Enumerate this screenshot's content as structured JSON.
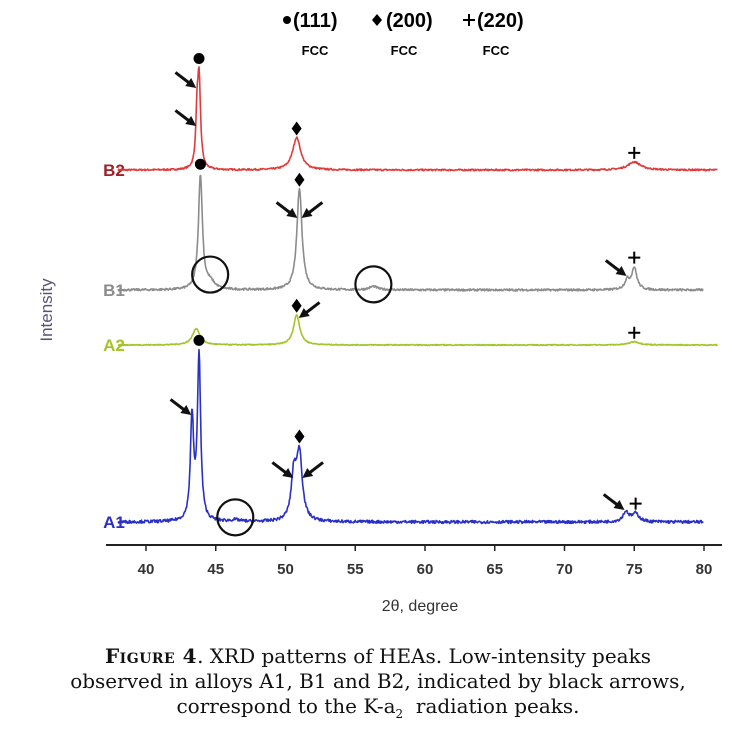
{
  "legend": [
    {
      "marker": "●",
      "label": "(111)",
      "sublabel": "FCC"
    },
    {
      "marker": "♦",
      "label": "(200)",
      "sublabel": "FCC"
    },
    {
      "marker": "+",
      "label": "(220)",
      "sublabel": "FCC"
    }
  ],
  "caption": {
    "fig_label": "Figure 4",
    "line1": ". XRD patterns of HEAs. Low-intensity peaks",
    "line2": "observed in alloys A1, B1 and B2, indicated by black arrows,",
    "line3_pre": "correspond to the K-a",
    "line3_sub": "2",
    "line3_post": "  radiation peaks."
  },
  "chart_data": {
    "type": "line",
    "xlabel": "2θ, degree",
    "ylabel": "Intensity",
    "xlim": [
      38,
      82
    ],
    "xticks": [
      40,
      45,
      50,
      55,
      60,
      65,
      70,
      75,
      80
    ],
    "grid": false,
    "series": [
      {
        "name": "B2",
        "color": "#e23a3a",
        "label_color": "#a01f28",
        "x_range": [
          38,
          81
        ],
        "baseline": 0.05,
        "peaks": [
          {
            "x": 43.8,
            "height": 1.0,
            "width": 0.13,
            "marker": "●",
            "arrow": true
          },
          {
            "x": 43.65,
            "height": 0.45,
            "width": 0.1,
            "arrow": true
          },
          {
            "x": 50.8,
            "height": 0.36,
            "width": 0.35,
            "marker": "♦"
          },
          {
            "x": 75.0,
            "height": 0.09,
            "width": 0.55,
            "marker": "+"
          }
        ]
      },
      {
        "name": "B1",
        "color": "#8c8c8c",
        "label_color": "#8c8c8c",
        "x_range": [
          38,
          80
        ],
        "baseline": 0.05,
        "peaks": [
          {
            "x": 43.9,
            "height": 1.0,
            "width": 0.17,
            "marker": "●"
          },
          {
            "x": 51.0,
            "height": 0.88,
            "width": 0.22,
            "marker": "♦",
            "arrow": true
          },
          {
            "x": 44.6,
            "height": 0.06,
            "width": 0.4,
            "circled": true
          },
          {
            "x": 56.3,
            "height": 0.03,
            "width": 0.35,
            "circled": true
          },
          {
            "x": 74.5,
            "height": 0.08,
            "width": 0.22,
            "arrow": true
          },
          {
            "x": 75.0,
            "height": 0.19,
            "width": 0.22,
            "marker": "+"
          }
        ]
      },
      {
        "name": "A2",
        "color": "#a4c42a",
        "label_color": "#a4c42a",
        "x_range": [
          38,
          81
        ],
        "baseline": 0.03,
        "peaks": [
          {
            "x": 43.6,
            "height": 0.3,
            "width": 0.32
          },
          {
            "x": 50.8,
            "height": 0.55,
            "width": 0.27,
            "marker": "♦",
            "arrow": true
          },
          {
            "x": 75.0,
            "height": 0.06,
            "width": 0.45,
            "marker": "+"
          }
        ]
      },
      {
        "name": "A1",
        "color": "#2a2fc8",
        "label_color": "#2a2fc8",
        "x_range": [
          38,
          80
        ],
        "baseline": 0.03,
        "peaks": [
          {
            "x": 43.8,
            "height": 1.0,
            "width": 0.14,
            "marker": "●"
          },
          {
            "x": 43.3,
            "height": 0.62,
            "width": 0.14,
            "arrow": true
          },
          {
            "x": 51.0,
            "height": 0.4,
            "width": 0.24,
            "marker": "♦",
            "arrow": true
          },
          {
            "x": 50.6,
            "height": 0.27,
            "width": 0.22,
            "arrow": true
          },
          {
            "x": 46.4,
            "height": 0.01,
            "width": 0.4,
            "circled": true
          },
          {
            "x": 74.4,
            "height": 0.06,
            "width": 0.25,
            "arrow": true
          },
          {
            "x": 75.1,
            "height": 0.05,
            "width": 0.3,
            "marker": "+"
          }
        ]
      }
    ]
  }
}
